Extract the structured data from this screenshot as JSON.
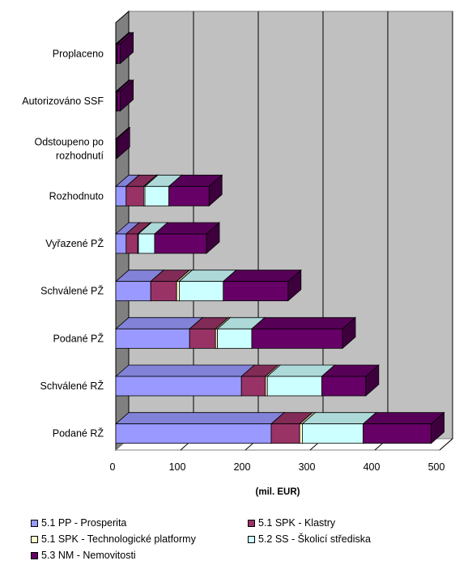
{
  "chart_data": {
    "type": "bar",
    "orientation": "horizontal",
    "stacked": true,
    "three_d": true,
    "categories": [
      "Proplaceno",
      "Autorizováno SSF",
      "Odstoupeno po rozhodnutí",
      "Rozhodnuto",
      "Vyřazené PŽ",
      "Schválené PŽ",
      "Podané PŽ",
      "Schválené RŽ",
      "Podané RŽ"
    ],
    "category_lines": [
      [
        "Proplaceno"
      ],
      [
        "Autorizováno SSF"
      ],
      [
        "Odstoupeno po",
        "rozhodnutí"
      ],
      [
        "Rozhodnuto"
      ],
      [
        "Vyřazené PŽ"
      ],
      [
        "Schválené PŽ"
      ],
      [
        "Podané PŽ"
      ],
      [
        "Schválené RŽ"
      ],
      [
        "Podané RŽ"
      ]
    ],
    "series": [
      {
        "name": "5.1 PP - Prosperita",
        "color": "#9999ff",
        "values": [
          1,
          1,
          0.5,
          16,
          16,
          54,
          114,
          194,
          240
        ]
      },
      {
        "name": "5.1 SPK - Klastry",
        "color": "#993366",
        "values": [
          1,
          1,
          0,
          27,
          18,
          40,
          40,
          37,
          44
        ]
      },
      {
        "name": "5.1 SPK - Technologické platformy",
        "color": "#ffffcc",
        "values": [
          0,
          0,
          0,
          2,
          1,
          4,
          3,
          3,
          4
        ]
      },
      {
        "name": "5.2 SS - Školicí střediska",
        "color": "#ccffff",
        "values": [
          0,
          0,
          0,
          37,
          25,
          68,
          53,
          84,
          94
        ]
      },
      {
        "name": "5.3 NM - Nemovitosti",
        "color": "#660066",
        "values": [
          5,
          5,
          1,
          62,
          80,
          100,
          140,
          68,
          105
        ]
      }
    ],
    "xlim": [
      0,
      500
    ],
    "xticks": [
      0,
      100,
      200,
      300,
      400,
      500
    ],
    "xlabel": "(mil. EUR)",
    "grid": true,
    "gridline_color": "#000000",
    "plot_background": "#c0c0c0",
    "side_wall_color": "#808080",
    "legend_position": "bottom"
  }
}
